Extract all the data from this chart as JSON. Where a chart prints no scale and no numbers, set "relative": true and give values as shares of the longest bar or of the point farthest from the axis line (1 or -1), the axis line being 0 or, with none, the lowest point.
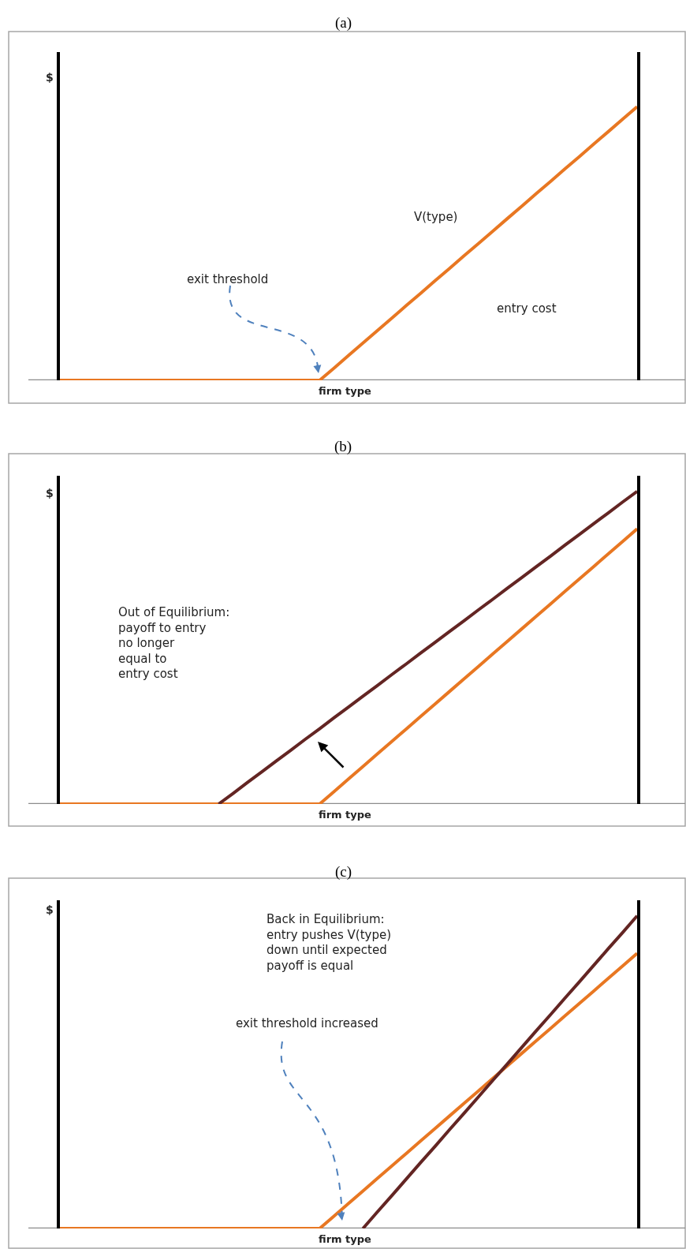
{
  "chart_data": [
    {
      "type": "line",
      "title": "(a)",
      "xlabel": "firm type",
      "ylabel": "$",
      "relative": true,
      "categories": [
        null,
        null,
        null,
        null,
        null,
        null,
        null,
        null,
        null,
        null,
        null,
        null,
        null,
        null,
        null,
        null,
        null,
        null,
        null,
        null,
        null,
        null,
        null,
        null,
        null,
        null,
        null,
        null,
        null,
        null,
        null,
        null,
        null,
        null,
        null,
        null,
        null,
        null,
        null,
        null,
        null
      ],
      "series": [
        {
          "color": "#e87722",
          "values": [
            0,
            0,
            0,
            0,
            0,
            0,
            0,
            0,
            0,
            0,
            0,
            0,
            0,
            0,
            0,
            0,
            0,
            0,
            0,
            0.045,
            0.091,
            0.136,
            0.182,
            0.227,
            0.273,
            0.318,
            0.364,
            0.409,
            0.455,
            0.5,
            0.545,
            0.591,
            0.636,
            0.682,
            0.727,
            0.773,
            0.818,
            0.864,
            0.909,
            0.955,
            1
          ]
        }
      ],
      "annotations": [
        "V(type)",
        "entry cost",
        "exit threshold"
      ]
    },
    {
      "type": "line",
      "title": "(b)",
      "xlabel": "firm type",
      "ylabel": "$",
      "relative": true,
      "categories": [
        null,
        null,
        null,
        null,
        null,
        null,
        null,
        null,
        null,
        null,
        null,
        null,
        null,
        null,
        null,
        null,
        null,
        null,
        null,
        null,
        null,
        null,
        null,
        null,
        null,
        null,
        null,
        null,
        null,
        null,
        null,
        null,
        null,
        null,
        null,
        null,
        null,
        null,
        null,
        null,
        null
      ],
      "series": [
        {
          "color": "#e87722",
          "values": [
            0,
            0,
            0,
            0,
            0,
            0,
            0,
            0,
            0,
            0,
            0,
            0,
            0,
            0,
            0,
            0,
            0,
            0,
            0,
            0.04,
            0.08,
            0.12,
            0.16,
            0.2,
            0.24,
            0.28,
            0.32,
            0.36,
            0.4,
            0.44,
            0.48,
            0.52,
            0.56,
            0.6,
            0.64,
            0.68,
            0.72,
            0.76,
            0.8,
            0.84,
            0.88
          ]
        },
        {
          "color": "#632523",
          "values": [
            null,
            null,
            null,
            null,
            null,
            null,
            null,
            null,
            null,
            null,
            null,
            0,
            0.034,
            0.069,
            0.103,
            0.138,
            0.172,
            0.207,
            0.241,
            0.276,
            0.31,
            0.345,
            0.379,
            0.414,
            0.448,
            0.483,
            0.517,
            0.552,
            0.586,
            0.621,
            0.655,
            0.69,
            0.724,
            0.759,
            0.793,
            0.828,
            0.862,
            0.897,
            0.931,
            0.966,
            1
          ]
        }
      ],
      "annotations": [
        "Out of Equilibrium:\npayoff to entry\nno longer\nequal to\nentry cost"
      ]
    },
    {
      "type": "line",
      "title": "(c)",
      "xlabel": "firm type",
      "ylabel": "$",
      "relative": true,
      "categories": [
        null,
        null,
        null,
        null,
        null,
        null,
        null,
        null,
        null,
        null,
        null,
        null,
        null,
        null,
        null,
        null,
        null,
        null,
        null,
        null,
        null,
        null,
        null,
        null,
        null,
        null,
        null,
        null,
        null,
        null,
        null,
        null,
        null,
        null,
        null,
        null,
        null,
        null,
        null,
        null,
        null
      ],
      "series": [
        {
          "color": "#e87722",
          "values": [
            0,
            0,
            0,
            0,
            0,
            0,
            0,
            0,
            0,
            0,
            0,
            0,
            0,
            0,
            0,
            0,
            0,
            0,
            0,
            0.04,
            0.08,
            0.12,
            0.16,
            0.2,
            0.24,
            0.28,
            0.32,
            0.36,
            0.4,
            0.44,
            0.48,
            0.52,
            0.56,
            0.6,
            0.64,
            0.68,
            0.72,
            0.76,
            0.8,
            0.84,
            0.88
          ]
        },
        {
          "color": "#632523",
          "values": [
            null,
            null,
            null,
            null,
            null,
            null,
            null,
            null,
            null,
            null,
            null,
            null,
            null,
            null,
            null,
            null,
            null,
            null,
            null,
            null,
            null,
            0,
            0.053,
            0.105,
            0.158,
            0.211,
            0.263,
            0.316,
            0.368,
            0.421,
            0.474,
            0.526,
            0.579,
            0.632,
            0.684,
            0.737,
            0.789,
            0.842,
            0.895,
            0.947,
            1
          ]
        }
      ],
      "annotations": [
        "Back in Equilibrium:\nentry pushes V(type)\ndown until expected\npayoff is equal",
        "exit threshold increased"
      ]
    }
  ]
}
